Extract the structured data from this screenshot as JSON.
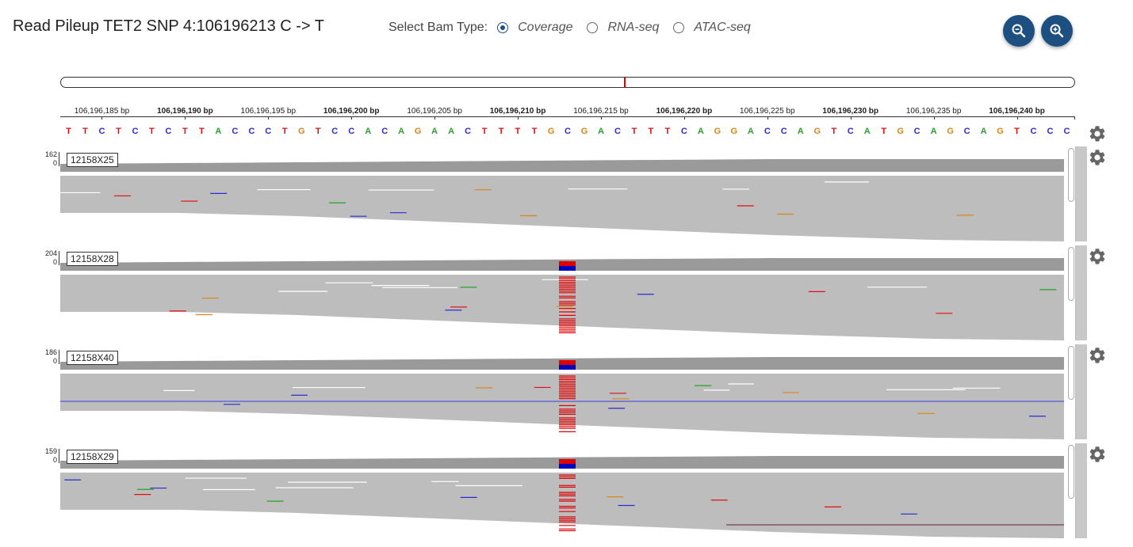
{
  "header": {
    "title": "Read Pileup TET2 SNP 4:106196213 C -> T",
    "bam_select_label": "Select Bam Type:",
    "options": [
      {
        "label": "Coverage",
        "selected": true
      },
      {
        "label": "RNA-seq",
        "selected": false
      },
      {
        "label": "ATAC-seq",
        "selected": false
      }
    ],
    "zoom_out_icon": "zoom-out-icon",
    "zoom_in_icon": "zoom-in-icon"
  },
  "ruler": {
    "start_bp": 106196182.5,
    "bp_per_view": 61,
    "ticks": [
      {
        "label": "106,196,185 bp",
        "bold": false
      },
      {
        "label": "106,196,190 bp",
        "bold": true
      },
      {
        "label": "106,196,195 bp",
        "bold": false
      },
      {
        "label": "106,196,200 bp",
        "bold": true
      },
      {
        "label": "106,196,205 bp",
        "bold": false
      },
      {
        "label": "106,196,210 bp",
        "bold": true
      },
      {
        "label": "106,196,215 bp",
        "bold": false
      },
      {
        "label": "106,196,220 bp",
        "bold": true
      },
      {
        "label": "106,196,225 bp",
        "bold": false
      },
      {
        "label": "106,196,230 bp",
        "bold": true
      },
      {
        "label": "106,196,235 bp",
        "bold": false
      },
      {
        "label": "106,196,240 bp",
        "bold": true
      }
    ]
  },
  "sequence": "TTCTCTCTTACCCTGTCCACAGAACTTTTGCGACTTTCAGGACCAGTCATGCAGCAGTCCC",
  "colors": {
    "A": "#2aa02a",
    "C": "#2b2bd6",
    "G": "#d98515",
    "T": "#e01010",
    "read": "#bdbdbd",
    "coverage": "#9a9a9a",
    "alt": "#e00000",
    "ref": "#0000c0"
  },
  "tracks": [
    {
      "sample": "12158X25",
      "max": "162",
      "min": "0",
      "has_snp": false
    },
    {
      "sample": "12158X28",
      "max": "204",
      "min": "0",
      "has_snp": true
    },
    {
      "sample": "12158X40",
      "max": "186",
      "min": "0",
      "has_snp": true
    },
    {
      "sample": "12158X29",
      "max": "159",
      "min": "0",
      "has_snp": true
    }
  ],
  "settings_icon": "gear-icon"
}
